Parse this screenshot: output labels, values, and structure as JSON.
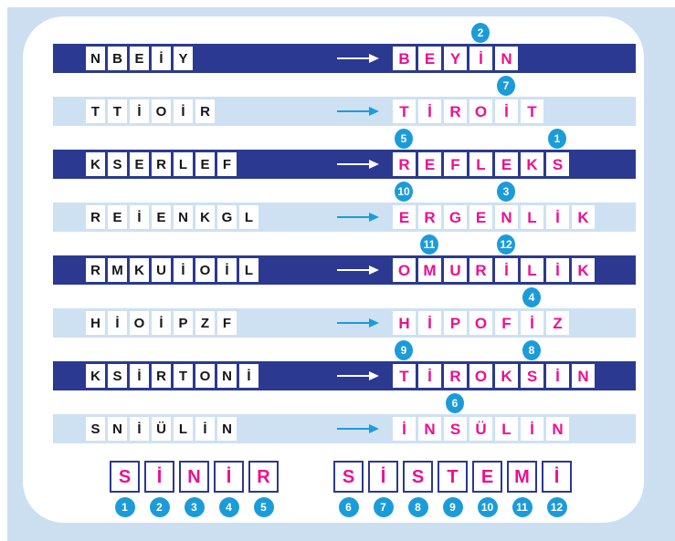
{
  "palette": {
    "navy_row": "#2b3990",
    "light_row": "#cde1f3",
    "page_background": "#cbdff1",
    "card_background": "#ffffff",
    "letter_pink": "#ec108f",
    "scrambled_letter_black": "#15151a",
    "badge_blue": "#1b9cd9",
    "arrow_on_dark": "#ffffff",
    "arrow_on_light": "#1b9cd9"
  },
  "rows": [
    {
      "theme": "dark",
      "scrambled": [
        "N",
        "B",
        "E",
        "İ",
        "Y"
      ],
      "answer": [
        "B",
        "E",
        "Y",
        "İ",
        "N"
      ],
      "answer_word": "BEYİN",
      "markers": [
        {
          "number": "2",
          "tile": 3
        }
      ]
    },
    {
      "theme": "light",
      "scrambled": [
        "T",
        "T",
        "İ",
        "O",
        "İ",
        "R"
      ],
      "answer": [
        "T",
        "İ",
        "R",
        "O",
        "İ",
        "T"
      ],
      "answer_word": "TİROİT",
      "markers": [
        {
          "number": "7",
          "tile": 4
        }
      ]
    },
    {
      "theme": "dark",
      "scrambled": [
        "K",
        "S",
        "E",
        "R",
        "L",
        "E",
        "F"
      ],
      "answer": [
        "R",
        "E",
        "F",
        "L",
        "E",
        "K",
        "S"
      ],
      "answer_word": "REFLEKS",
      "markers": [
        {
          "number": "5",
          "tile": 0
        },
        {
          "number": "1",
          "tile": 6
        }
      ]
    },
    {
      "theme": "light",
      "scrambled": [
        "R",
        "E",
        "İ",
        "E",
        "N",
        "K",
        "G",
        "L"
      ],
      "answer": [
        "E",
        "R",
        "G",
        "E",
        "N",
        "L",
        "İ",
        "K"
      ],
      "answer_word": "ERGENLİK",
      "markers": [
        {
          "number": "10",
          "tile": 0
        },
        {
          "number": "3",
          "tile": 4
        }
      ]
    },
    {
      "theme": "dark",
      "scrambled": [
        "R",
        "M",
        "K",
        "U",
        "İ",
        "O",
        "İ",
        "L"
      ],
      "answer": [
        "O",
        "M",
        "U",
        "R",
        "İ",
        "L",
        "İ",
        "K"
      ],
      "answer_word": "OMURİLİK",
      "markers": [
        {
          "number": "11",
          "tile": 1
        },
        {
          "number": "12",
          "tile": 4
        }
      ]
    },
    {
      "theme": "light",
      "scrambled": [
        "H",
        "İ",
        "O",
        "İ",
        "P",
        "Z",
        "F"
      ],
      "answer": [
        "H",
        "İ",
        "P",
        "O",
        "F",
        "İ",
        "Z"
      ],
      "answer_word": "HİPOFİZ",
      "markers": [
        {
          "number": "4",
          "tile": 5
        }
      ]
    },
    {
      "theme": "dark",
      "scrambled": [
        "K",
        "S",
        "İ",
        "R",
        "T",
        "O",
        "N",
        "İ"
      ],
      "answer": [
        "T",
        "İ",
        "R",
        "O",
        "K",
        "S",
        "İ",
        "N"
      ],
      "answer_word": "TİROKSİN",
      "markers": [
        {
          "number": "9",
          "tile": 0
        },
        {
          "number": "8",
          "tile": 5
        }
      ]
    },
    {
      "theme": "light",
      "scrambled": [
        "S",
        "N",
        "İ",
        "Ü",
        "L",
        "İ",
        "N"
      ],
      "answer": [
        "İ",
        "N",
        "S",
        "Ü",
        "L",
        "İ",
        "N"
      ],
      "answer_word": "İNSÜLİN",
      "markers": [
        {
          "number": "6",
          "tile": 2
        }
      ]
    }
  ],
  "solution": {
    "words": [
      {
        "word": "SİNİR",
        "letters": [
          "S",
          "İ",
          "N",
          "İ",
          "R"
        ],
        "numbers": [
          "1",
          "2",
          "3",
          "4",
          "5"
        ]
      },
      {
        "word": "SİSTEMİ",
        "letters": [
          "S",
          "İ",
          "S",
          "T",
          "E",
          "M",
          "İ"
        ],
        "numbers": [
          "6",
          "7",
          "8",
          "9",
          "10",
          "11",
          "12"
        ]
      }
    ]
  }
}
